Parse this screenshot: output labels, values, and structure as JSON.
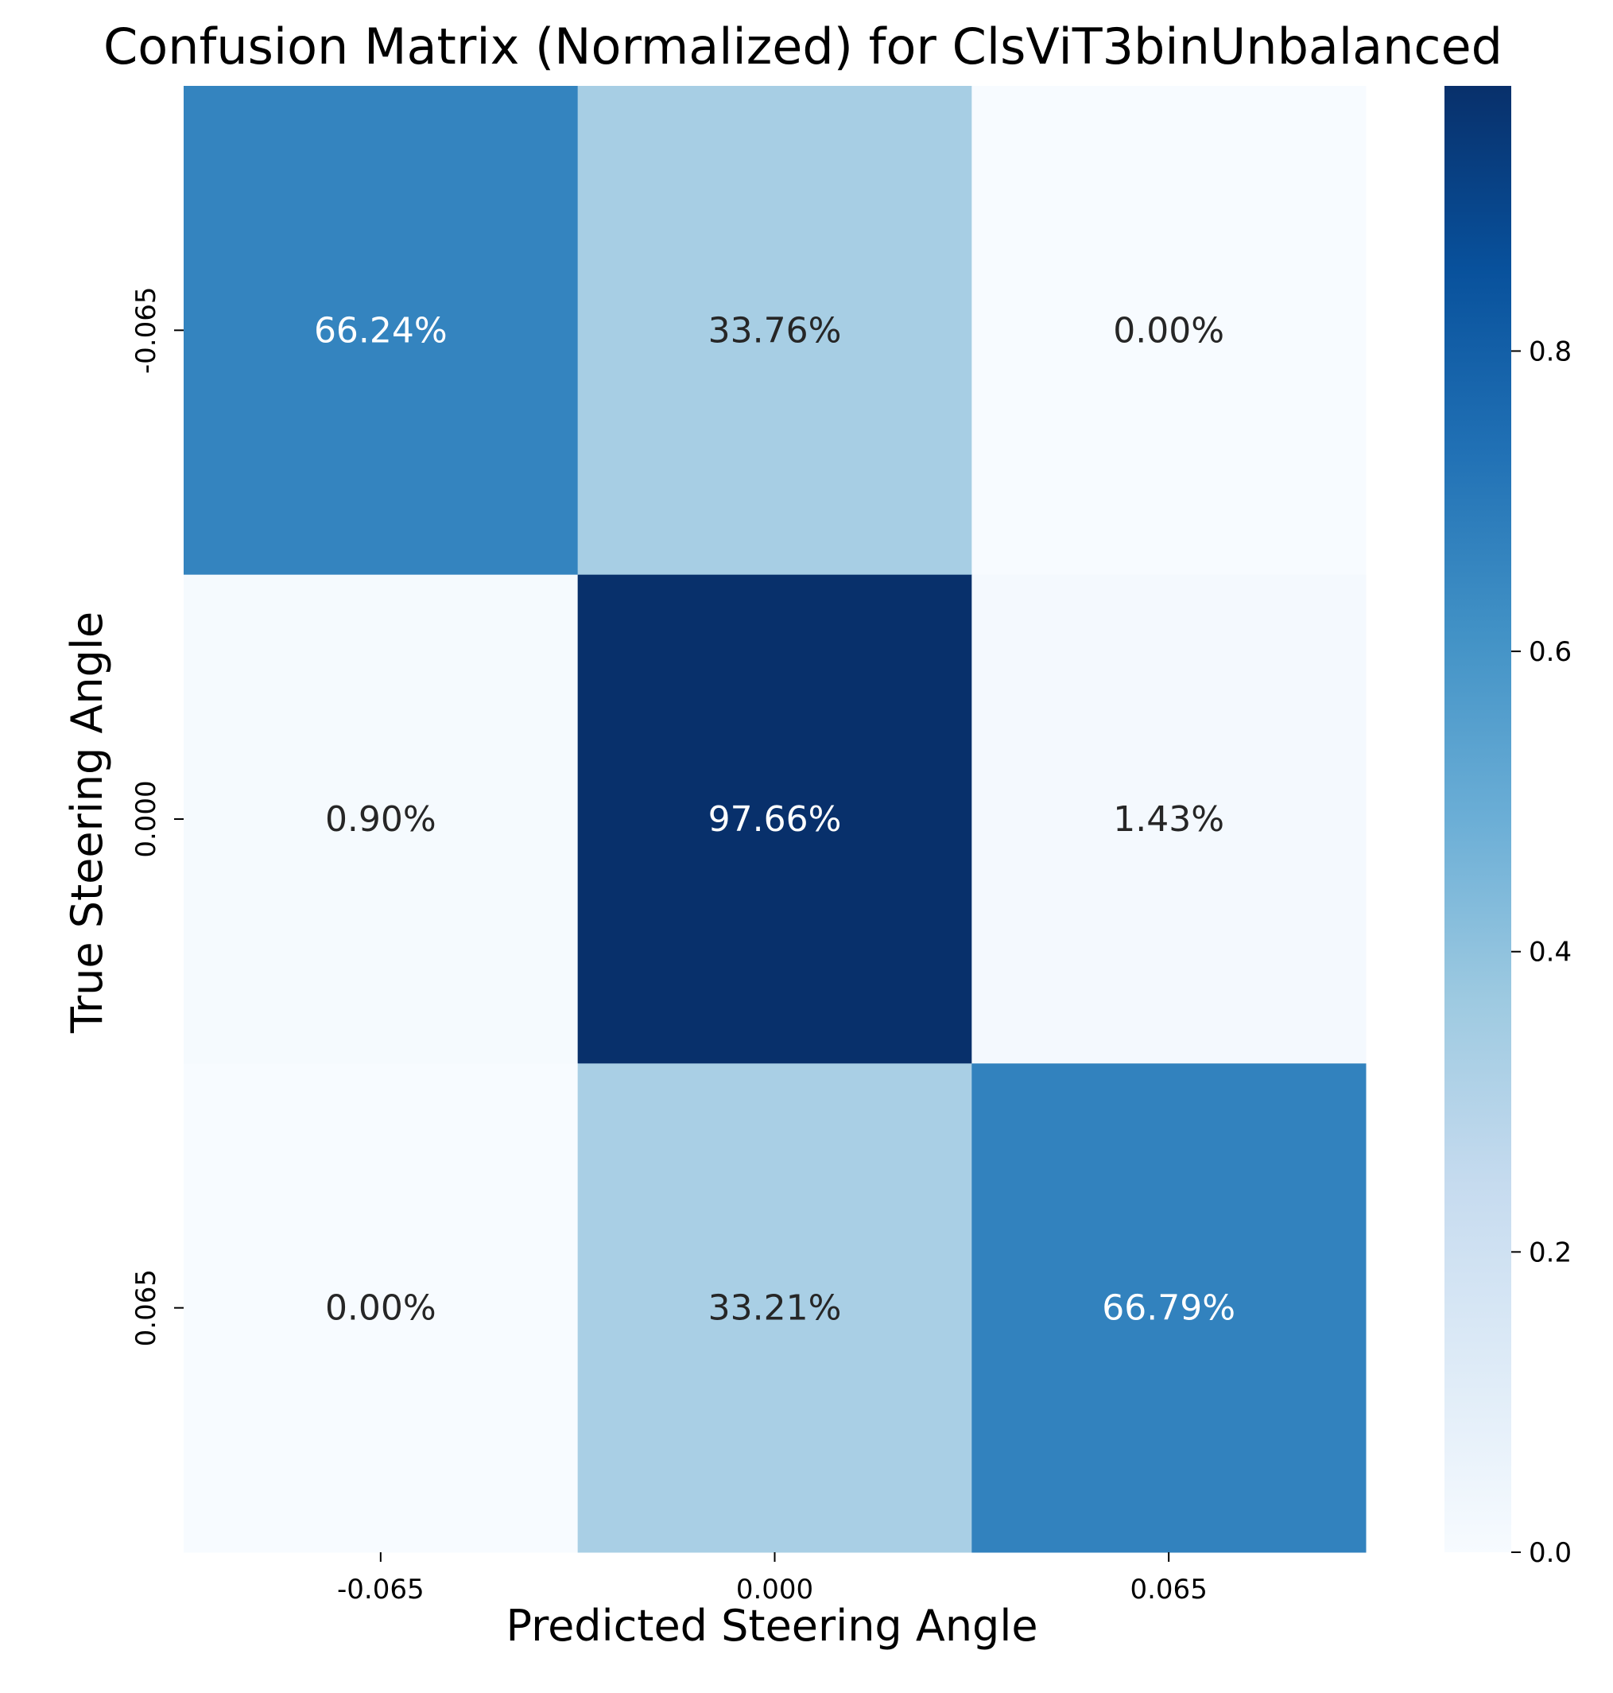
{
  "chart_data": {
    "type": "heatmap",
    "title": "Confusion Matrix (Normalized) for ClsViT3binUnbalanced",
    "xlabel": "Predicted Steering Angle",
    "ylabel": "True Steering Angle",
    "x_categories": [
      "-0.065",
      "0.000",
      "0.065"
    ],
    "y_categories": [
      "-0.065",
      "0.000",
      "0.065"
    ],
    "values": [
      [
        0.6624,
        0.3376,
        0.0
      ],
      [
        0.009,
        0.9766,
        0.0143
      ],
      [
        0.0,
        0.3321,
        0.6679
      ]
    ],
    "cell_labels": [
      [
        "66.24%",
        "33.76%",
        "0.00%"
      ],
      [
        "0.90%",
        "97.66%",
        "1.43%"
      ],
      [
        "0.00%",
        "33.21%",
        "66.79%"
      ]
    ],
    "colorbar": {
      "ticks": [
        0.0,
        0.2,
        0.4,
        0.6,
        0.8
      ],
      "tick_labels": [
        "0.0",
        "0.2",
        "0.4",
        "0.6",
        "0.8"
      ],
      "range": [
        0.0,
        0.9766
      ]
    },
    "colormap": [
      "#f7fbff",
      "#deebf7",
      "#c6dbef",
      "#9ecae1",
      "#6baed6",
      "#4292c6",
      "#2171b5",
      "#08519c",
      "#08306b"
    ],
    "grid": false
  }
}
